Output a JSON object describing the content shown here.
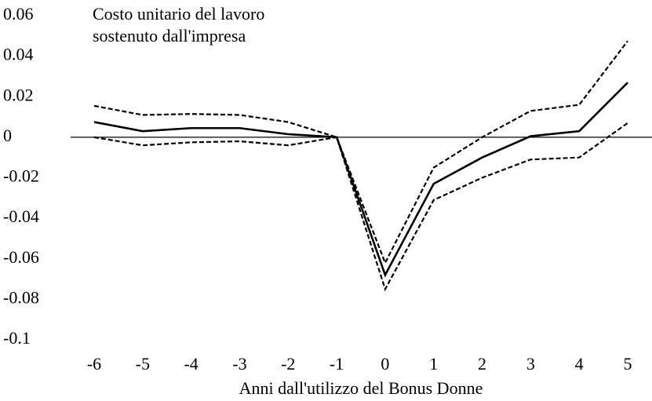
{
  "chart_data": {
    "type": "line",
    "annotation": [
      "Costo unitario del lavoro",
      "sostenuto dall'impresa"
    ],
    "xlabel": "Anni dall'utilizzo del Bonus Donne",
    "x": [
      -6,
      -5,
      -4,
      -3,
      -2,
      -1,
      0,
      1,
      2,
      3,
      4,
      5
    ],
    "xlim": [
      -6,
      5
    ],
    "xticks": [
      -6,
      -5,
      -4,
      -3,
      -2,
      -1,
      0,
      1,
      2,
      3,
      4,
      5
    ],
    "ylim": [
      -0.1,
      0.06
    ],
    "yticks": [
      -0.1,
      -0.08,
      -0.06,
      -0.04,
      -0.02,
      0,
      0.02,
      0.04,
      0.06
    ],
    "zero_line": true,
    "series": [
      {
        "color": "#000000",
        "dashed": false,
        "values": [
          0.0075,
          0.003,
          0.0045,
          0.0045,
          0.0015,
          0,
          -0.068,
          -0.023,
          -0.01,
          0.0005,
          0.003,
          0.027
        ]
      },
      {
        "color": "#000000",
        "dashed": true,
        "values": [
          0.0155,
          0.011,
          0.0115,
          0.011,
          0.0075,
          0,
          -0.062,
          -0.015,
          0.0,
          0.013,
          0.016,
          0.0475
        ]
      },
      {
        "color": "#000000",
        "dashed": true,
        "values": [
          0,
          -0.004,
          -0.0025,
          -0.002,
          -0.004,
          0,
          -0.075,
          -0.031,
          -0.02,
          -0.011,
          -0.01,
          0.007
        ]
      }
    ]
  }
}
